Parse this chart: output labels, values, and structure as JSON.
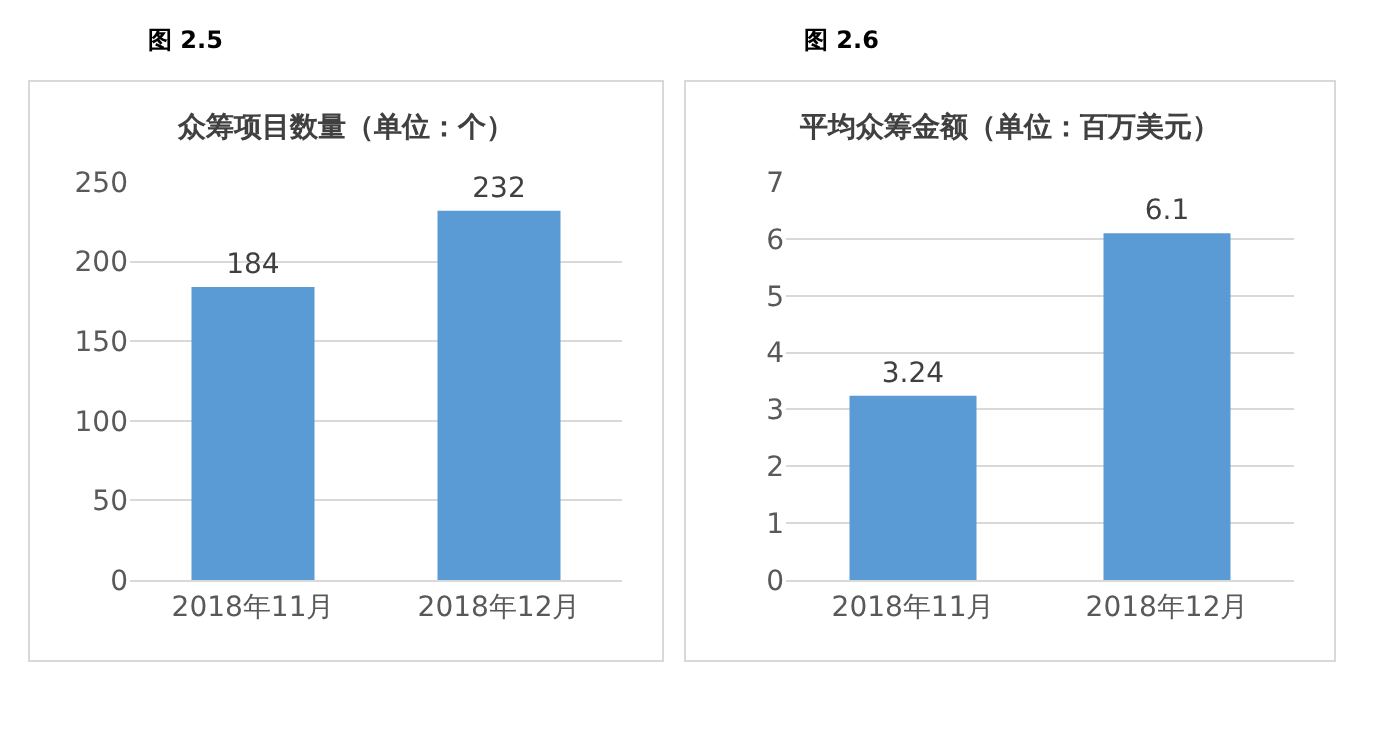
{
  "chart_data": [
    {
      "type": "bar",
      "annotations": [
        "图 2.5"
      ],
      "title": "众筹项目数量（单位：个）",
      "categories": [
        "2018年11月",
        "2018年12月"
      ],
      "values": [
        184,
        232
      ],
      "color": "#5b9bd5",
      "ylim": [
        0,
        250
      ],
      "yticks": [
        0,
        50,
        100,
        150,
        200,
        250
      ],
      "grid": "y",
      "data_labels": true
    },
    {
      "type": "bar",
      "annotations": [
        "图 2.6"
      ],
      "title": "平均众筹金额（单位：百万美元）",
      "categories": [
        "2018年11月",
        "2018年12月"
      ],
      "values": [
        3.24,
        6.1
      ],
      "color": "#5b9bd5",
      "ylim": [
        0,
        7
      ],
      "yticks": [
        0,
        1,
        2,
        3,
        4,
        5,
        6,
        7
      ],
      "grid": "y",
      "data_labels": true
    }
  ]
}
